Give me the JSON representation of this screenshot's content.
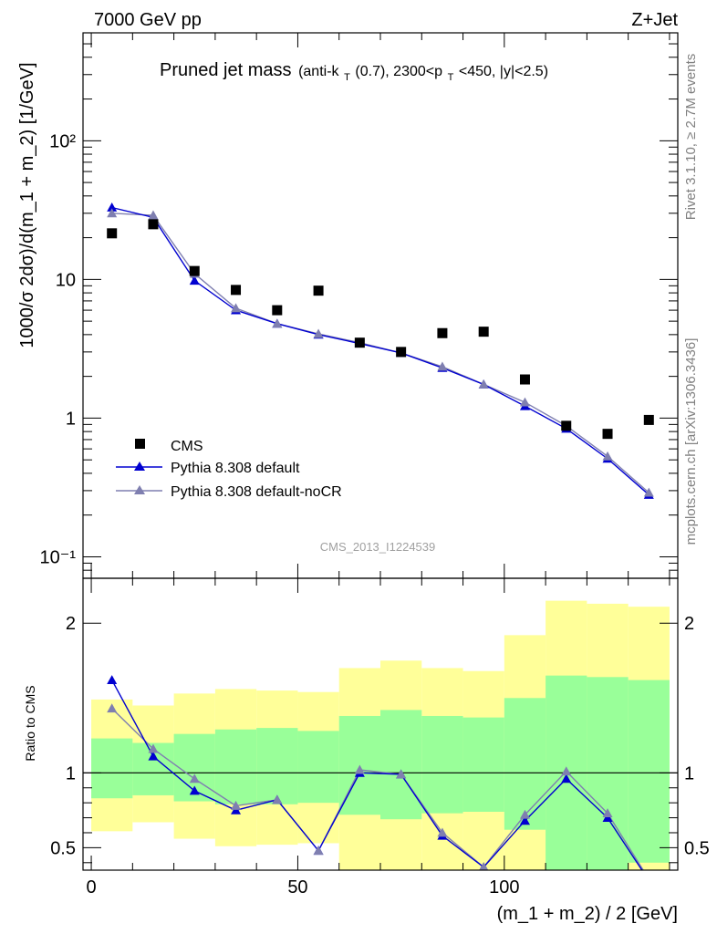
{
  "header": {
    "left": "7000 GeV pp",
    "right": "Z+Jet"
  },
  "plot_title": {
    "main": "Pruned jet mass",
    "sub_pre": "(anti-k",
    "sub_sub1": "T",
    "sub_mid": "(0.7), 2300<p",
    "sub_sub2": "T",
    "sub_post": "<450, |y|<2.5)"
  },
  "side_labels": {
    "rivet": "Rivet 3.1.10, ≥ 2.7M events",
    "mcplots": "mcplots.cern.ch [arXiv:1306.3436]"
  },
  "watermark": "CMS_2013_I1224539",
  "chart_data": [
    {
      "type": "scatter",
      "panel": "main",
      "ylabel": "1000/σ 2dσ)/d(m_1 + m_2) [1/GeV]",
      "yscale": "log",
      "ylim": [
        0.07,
        600
      ],
      "xlim": [
        -2,
        142
      ],
      "ytick_labels": [
        "10⁻¹",
        "1",
        "10",
        "10²"
      ],
      "legend_position": "lower-left",
      "x": [
        5,
        15,
        25,
        35,
        45,
        55,
        65,
        75,
        85,
        95,
        105,
        115,
        125,
        135
      ],
      "series": [
        {
          "name": "CMS",
          "marker": "square",
          "color": "#000000",
          "values": [
            21.5,
            25.0,
            11.5,
            8.4,
            6.0,
            8.3,
            3.5,
            3.0,
            4.1,
            4.2,
            1.9,
            0.88,
            0.77,
            0.97
          ]
        },
        {
          "name": "Pythia 8.308 default",
          "marker": "triangle",
          "color": "#0000d0",
          "values": [
            33.0,
            28.0,
            9.8,
            6.0,
            4.8,
            4.0,
            3.45,
            2.95,
            2.3,
            1.75,
            1.22,
            0.84,
            0.51,
            0.28
          ]
        },
        {
          "name": "Pythia 8.308 default-noCR",
          "marker": "triangle",
          "color": "#7f7fb0",
          "values": [
            30.0,
            29.0,
            11.0,
            6.2,
            4.8,
            4.05,
            3.5,
            2.95,
            2.35,
            1.75,
            1.3,
            0.88,
            0.53,
            0.29
          ]
        }
      ]
    },
    {
      "type": "line",
      "panel": "ratio",
      "xlabel": "(m_1 + m_2) / 2 [GeV]",
      "ylabel": "Ratio to CMS",
      "ylim": [
        0.35,
        2.3
      ],
      "xlim": [
        -2,
        142
      ],
      "yticks": [
        0.5,
        1,
        2
      ],
      "xticks": [
        0,
        50,
        100
      ],
      "bin_edges": [
        0,
        10,
        20,
        30,
        40,
        50,
        60,
        70,
        80,
        90,
        100,
        110,
        120,
        130,
        140
      ],
      "bands": {
        "total_uncertainty": {
          "color": "#ffff99",
          "low": [
            0.61,
            0.67,
            0.56,
            0.51,
            0.52,
            0.53,
            0.3,
            0.3,
            0.3,
            0.3,
            0.3,
            0.3,
            0.3,
            0.3
          ],
          "high": [
            1.49,
            1.45,
            1.53,
            1.56,
            1.55,
            1.54,
            1.7,
            1.75,
            1.7,
            1.68,
            1.92,
            2.15,
            2.13,
            2.11
          ]
        },
        "stat_uncertainty": {
          "color": "#99ff99",
          "low": [
            0.83,
            0.85,
            0.81,
            0.79,
            0.79,
            0.8,
            0.72,
            0.69,
            0.73,
            0.74,
            0.62,
            0.35,
            0.35,
            0.4
          ],
          "high": [
            1.23,
            1.2,
            1.26,
            1.29,
            1.3,
            1.28,
            1.38,
            1.42,
            1.38,
            1.37,
            1.5,
            1.65,
            1.64,
            1.62
          ]
        }
      },
      "x": [
        5,
        15,
        25,
        35,
        45,
        55,
        65,
        75,
        85,
        95,
        105,
        115,
        125,
        135
      ],
      "series": [
        {
          "name": "Pythia 8.308 default",
          "color": "#0000d0",
          "values": [
            1.62,
            1.11,
            0.88,
            0.75,
            0.82,
            0.48,
            1.0,
            0.99,
            0.58,
            0.37,
            0.68,
            0.96,
            0.7,
            0.28
          ]
        },
        {
          "name": "Pythia 8.308 default-noCR",
          "color": "#7f7fb0",
          "values": [
            1.43,
            1.16,
            0.96,
            0.78,
            0.82,
            0.48,
            1.02,
            0.99,
            0.6,
            0.37,
            0.72,
            1.01,
            0.73,
            0.29
          ]
        }
      ]
    }
  ]
}
